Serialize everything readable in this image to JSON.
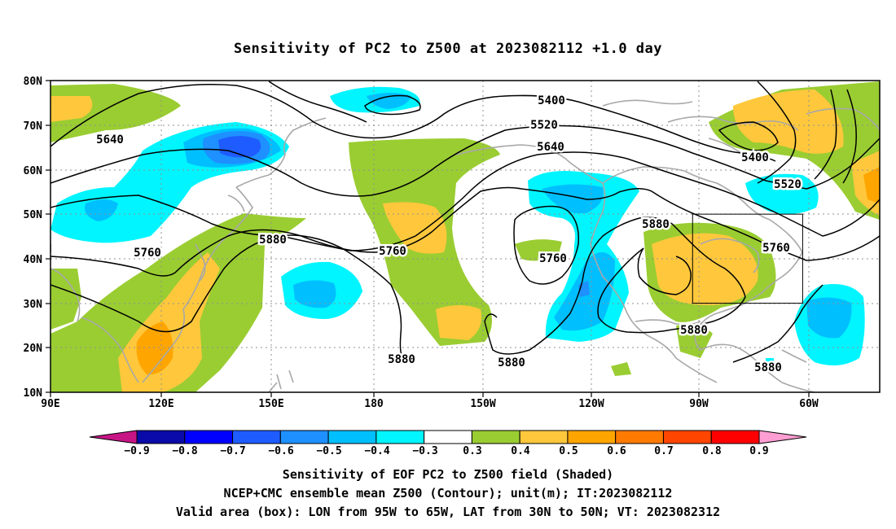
{
  "title": "Sensitivity of PC2 to Z500 at 2023082112 +1.0 day",
  "map": {
    "lat_labels": [
      "80N",
      "70N",
      "60N",
      "50N",
      "40N",
      "30N",
      "20N",
      "10N"
    ],
    "lon_labels": [
      "90E",
      "120E",
      "150E",
      "180",
      "150W",
      "120W",
      "90W",
      "60W"
    ],
    "contour_labels": [
      {
        "text": "5400"
      },
      {
        "text": "5520"
      },
      {
        "text": "5640"
      },
      {
        "text": "5640"
      },
      {
        "text": "5400"
      },
      {
        "text": "5520"
      },
      {
        "text": "5760"
      },
      {
        "text": "5880"
      },
      {
        "text": "5760"
      },
      {
        "text": "5760"
      },
      {
        "text": "5880"
      },
      {
        "text": "5760"
      },
      {
        "text": "5880"
      },
      {
        "text": "5880"
      },
      {
        "text": "5880"
      },
      {
        "text": "5880"
      }
    ],
    "valid_box": {
      "lon_min": -95,
      "lon_max": -65,
      "lat_min": 30,
      "lat_max": 50
    }
  },
  "colorbar": {
    "labels": [
      "−0.9",
      "−0.8",
      "−0.7",
      "−0.6",
      "−0.5",
      "−0.4",
      "−0.3",
      "0.3",
      "0.4",
      "0.5",
      "0.6",
      "0.7",
      "0.8",
      "0.9"
    ],
    "colors": [
      "#0a0aa8",
      "#0000ff",
      "#1e5cff",
      "#1e90ff",
      "#00bfff",
      "#00f5ff",
      "#ffffff",
      "#9acd32",
      "#ffc83c",
      "#ffa500",
      "#ff7a00",
      "#ff4500",
      "#ff0000"
    ],
    "low_color": "#c71585",
    "high_color": "#ff9ed2"
  },
  "captions": [
    "Sensitivity of EOF PC2 to Z500 field (Shaded)",
    "NCEP+CMC ensemble mean Z500 (Contour); unit(m); IT:2023082112",
    "Valid area (box): LON from 95W to 65W, LAT from 30N to 50N; VT: 2023082312"
  ]
}
